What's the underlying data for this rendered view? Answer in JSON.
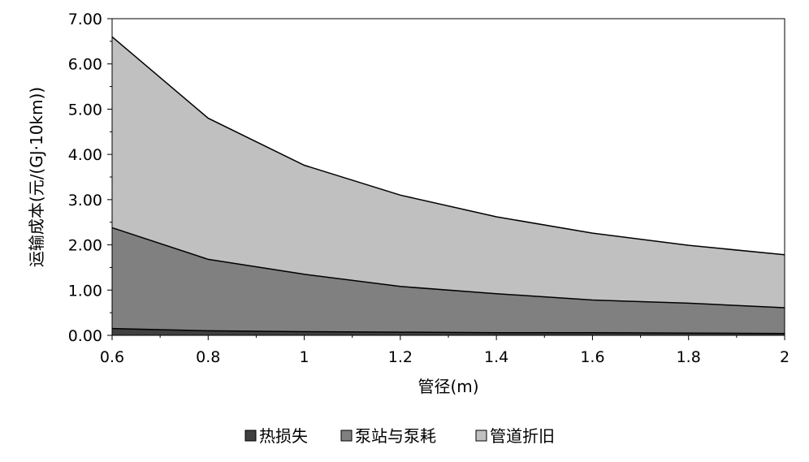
{
  "chart_data": {
    "type": "area",
    "stacked": true,
    "xlabel": "管径(m)",
    "ylabel": "运输成本(元/(GJ·10km))",
    "x": [
      0.6,
      0.8,
      1.0,
      1.2,
      1.4,
      1.6,
      1.8,
      2.0
    ],
    "x_tick_labels": [
      "0.6",
      "0.8",
      "1",
      "1.2",
      "1.4",
      "1.6",
      "1.8",
      "2"
    ],
    "y_tick_labels": [
      "0.00",
      "1.00",
      "2.00",
      "3.00",
      "4.00",
      "5.00",
      "6.00",
      "7.00"
    ],
    "ylim": [
      0,
      7
    ],
    "xlim": [
      0.6,
      2.0
    ],
    "grid": false,
    "legend_position": "bottom",
    "series": [
      {
        "name": "热损失",
        "color": "#404040",
        "values": [
          0.15,
          0.1,
          0.08,
          0.07,
          0.06,
          0.06,
          0.05,
          0.04
        ]
      },
      {
        "name": "泵站与泵耗",
        "color": "#808080",
        "values": [
          2.23,
          1.58,
          1.27,
          1.01,
          0.86,
          0.72,
          0.66,
          0.57
        ]
      },
      {
        "name": "管道折旧",
        "color": "#c0c0c0",
        "values": [
          4.22,
          3.12,
          2.41,
          2.02,
          1.7,
          1.48,
          1.28,
          1.17
        ]
      }
    ]
  }
}
